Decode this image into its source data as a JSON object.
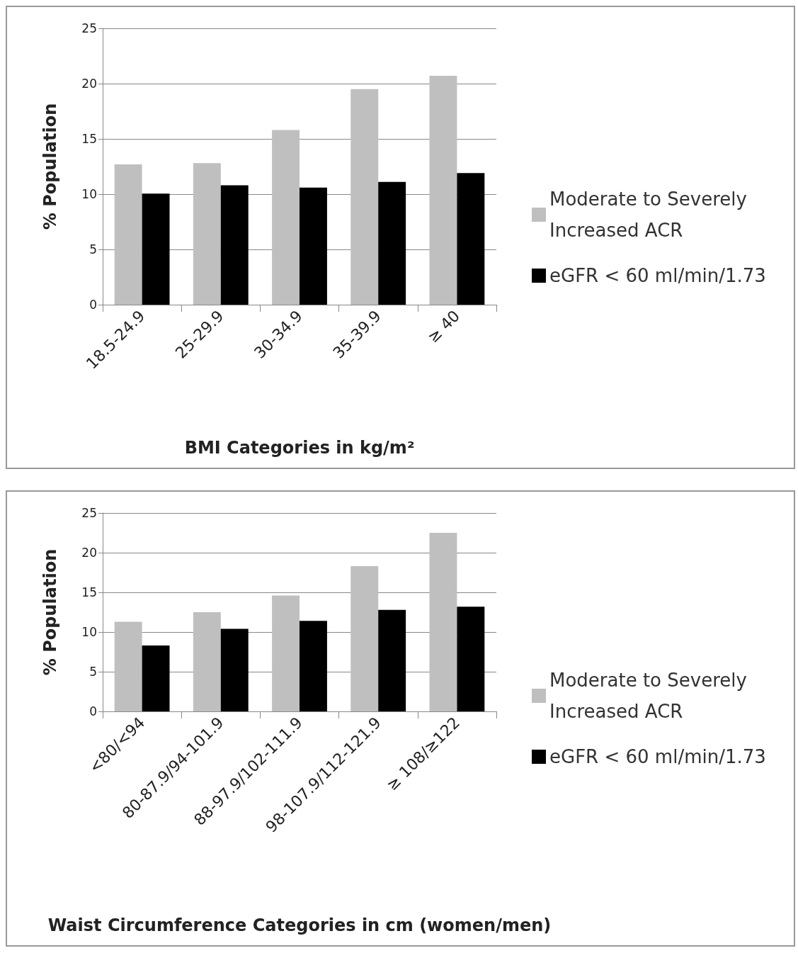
{
  "chart_data": [
    {
      "type": "bar",
      "categories": [
        "18.5-24.9",
        "25-29.9",
        "30-34.9",
        "35-39.9",
        "≥ 40"
      ],
      "xlabel": "BMI Categories in kg/m²",
      "ylabel": "% Population",
      "series": [
        {
          "name": "Moderate to Severely Increased ACR",
          "color": "#bfbfbf",
          "values": [
            12.7,
            12.8,
            15.8,
            19.5,
            20.7
          ]
        },
        {
          "name": "eGFR < 60 ml/min/1.73",
          "color": "#000000",
          "values": [
            10.05,
            10.8,
            10.6,
            11.1,
            11.9
          ]
        }
      ],
      "ylim": [
        0,
        25
      ],
      "yticks": [
        0,
        5,
        10,
        15,
        20,
        25
      ],
      "grid": "y",
      "legend": "right"
    },
    {
      "type": "bar",
      "categories": [
        "<80/<94",
        "80-87.9/94-101.9",
        "88-97.9/102-111.9",
        "98-107.9/112-121.9",
        "≥ 108/≥122"
      ],
      "xlabel": "Waist Circumference Categories in cm (women/men)",
      "ylabel": "% Population",
      "series": [
        {
          "name": "Moderate to Severely Increased ACR",
          "color": "#bfbfbf",
          "values": [
            11.3,
            12.5,
            14.6,
            18.3,
            22.5
          ]
        },
        {
          "name": "eGFR < 60 ml/min/1.73",
          "color": "#000000",
          "values": [
            8.3,
            10.4,
            11.4,
            12.8,
            13.2
          ]
        }
      ],
      "ylim": [
        0,
        25
      ],
      "yticks": [
        0,
        5,
        10,
        15,
        20,
        25
      ],
      "grid": "y",
      "legend": "right"
    }
  ]
}
